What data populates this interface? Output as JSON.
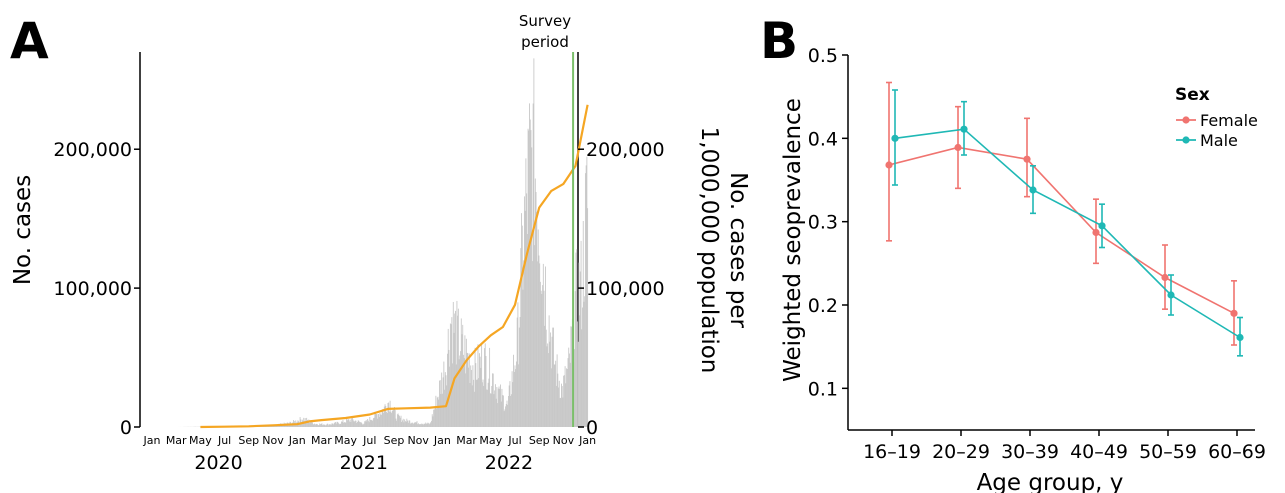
{
  "panel_a": {
    "letter": "A",
    "survey_label_line1": "Survey",
    "survey_label_line2": "period",
    "left_axis_title": "No. cases",
    "right_axis_title_line1": "No. cases per",
    "right_axis_title_line2": "1,000,000 population",
    "left_ticks": [
      {
        "value": 0,
        "label": "0"
      },
      {
        "value": 100000,
        "label": "100,000"
      },
      {
        "value": 200000,
        "label": "200,000"
      }
    ],
    "right_ticks": [
      {
        "value": 0,
        "label": "0"
      },
      {
        "value": 100000,
        "label": "100,000"
      },
      {
        "value": 200000,
        "label": "200,000"
      }
    ],
    "month_labels": [
      "Jan",
      "Mar",
      "May",
      "Jul",
      "Sep",
      "Nov",
      "Jan",
      "Mar",
      "May",
      "Jul",
      "Sep",
      "Nov",
      "Jan",
      "Mar",
      "May",
      "Jul",
      "Sep",
      "Nov",
      "Jan"
    ],
    "year_labels": [
      "2020",
      "2021",
      "2022"
    ],
    "colors": {
      "bars": "#c8c8c8",
      "line": "#f5a623",
      "survey": "#7bbf6a"
    }
  },
  "panel_b": {
    "letter": "B",
    "y_axis_title": "Weighted seoprevalence",
    "x_axis_title": "Age group, y",
    "y_ticks": [
      "0.1",
      "0.2",
      "0.3",
      "0.4",
      "0.5"
    ],
    "legend_title": "Sex",
    "legend_entries": [
      "Female",
      "Male"
    ]
  },
  "chart_data": [
    {
      "type": "bar",
      "x_unit": "month",
      "x_range": [
        "2020-01",
        "2023-01"
      ],
      "ylim": [
        0,
        270000
      ],
      "xlabel": "",
      "ylabel": "No. cases",
      "ylabel_right": "No. cases per 1,000,000 population",
      "annotation": "Survey period",
      "survey_period_month_index": 34.8,
      "bars_daily_cases": [
        {
          "month": 0,
          "value": 0
        },
        {
          "month": 2,
          "value": 0
        },
        {
          "month": 4,
          "value": 200
        },
        {
          "month": 6,
          "value": 500
        },
        {
          "month": 8,
          "value": 1200
        },
        {
          "month": 10,
          "value": 1500
        },
        {
          "month": 11.5,
          "value": 4000
        },
        {
          "month": 12.5,
          "value": 8000
        },
        {
          "month": 13.5,
          "value": 3000
        },
        {
          "month": 14.5,
          "value": 2500
        },
        {
          "month": 15.5,
          "value": 4000
        },
        {
          "month": 16.5,
          "value": 7000
        },
        {
          "month": 17.5,
          "value": 3500
        },
        {
          "month": 19,
          "value": 15000
        },
        {
          "month": 19.6,
          "value": 25000
        },
        {
          "month": 20.2,
          "value": 10000
        },
        {
          "month": 21,
          "value": 6000
        },
        {
          "month": 22,
          "value": 4000
        },
        {
          "month": 23,
          "value": 3000
        },
        {
          "month": 24.3,
          "value": 60000
        },
        {
          "month": 24.7,
          "value": 104000
        },
        {
          "month": 25.3,
          "value": 85000
        },
        {
          "month": 26,
          "value": 68000
        },
        {
          "month": 26.7,
          "value": 55000
        },
        {
          "month": 27.4,
          "value": 65000
        },
        {
          "month": 28.1,
          "value": 50000
        },
        {
          "month": 28.8,
          "value": 30000
        },
        {
          "month": 29.4,
          "value": 20000
        },
        {
          "month": 30.2,
          "value": 80000
        },
        {
          "month": 30.7,
          "value": 180000
        },
        {
          "month": 31.2,
          "value": 245000
        },
        {
          "month": 31.6,
          "value": 255000
        },
        {
          "month": 32.1,
          "value": 190000
        },
        {
          "month": 32.7,
          "value": 110000
        },
        {
          "month": 33.3,
          "value": 60000
        },
        {
          "month": 33.9,
          "value": 35000
        },
        {
          "month": 34.5,
          "value": 60000
        },
        {
          "month": 35.0,
          "value": 120000
        },
        {
          "month": 35.5,
          "value": 135000
        },
        {
          "month": 35.9,
          "value": 205000
        },
        {
          "month": 36.0,
          "value": 215000
        }
      ],
      "line_per_million": {
        "name": "",
        "points": [
          {
            "month": 4.0,
            "value": 0
          },
          {
            "month": 6,
            "value": 200
          },
          {
            "month": 8,
            "value": 500
          },
          {
            "month": 10,
            "value": 1200
          },
          {
            "month": 12,
            "value": 2000
          },
          {
            "month": 13,
            "value": 4000
          },
          {
            "month": 14,
            "value": 5000
          },
          {
            "month": 16,
            "value": 6500
          },
          {
            "month": 18,
            "value": 9000
          },
          {
            "month": 19.5,
            "value": 13000
          },
          {
            "month": 21,
            "value": 13500
          },
          {
            "month": 23,
            "value": 14000
          },
          {
            "month": 24.3,
            "value": 15000
          },
          {
            "month": 25.0,
            "value": 35000
          },
          {
            "month": 26,
            "value": 48000
          },
          {
            "month": 27,
            "value": 58000
          },
          {
            "month": 28,
            "value": 66000
          },
          {
            "month": 29,
            "value": 72000
          },
          {
            "month": 30,
            "value": 88000
          },
          {
            "month": 31,
            "value": 125000
          },
          {
            "month": 32,
            "value": 158000
          },
          {
            "month": 33,
            "value": 170000
          },
          {
            "month": 34,
            "value": 175000
          },
          {
            "month": 35,
            "value": 188000
          },
          {
            "month": 36,
            "value": 232000
          }
        ]
      }
    },
    {
      "type": "line",
      "categories": [
        "16–19",
        "20–29",
        "30–39",
        "40–49",
        "50–59",
        "60–69"
      ],
      "xlabel": "Age group, y",
      "ylabel": "Weighted seoprevalence",
      "ylim": [
        0.05,
        0.5
      ],
      "legend_title": "Sex",
      "legend_position": "top-right",
      "series": [
        {
          "name": "Female",
          "color": "#f07470",
          "values": [
            0.368,
            0.389,
            0.375,
            0.287,
            0.233,
            0.19
          ],
          "ci_low": [
            0.277,
            0.34,
            0.33,
            0.25,
            0.195,
            0.152
          ],
          "ci_high": [
            0.467,
            0.438,
            0.424,
            0.327,
            0.272,
            0.229
          ]
        },
        {
          "name": "Male",
          "color": "#1fb8b5",
          "values": [
            0.4,
            0.411,
            0.338,
            0.295,
            0.212,
            0.161
          ],
          "ci_low": [
            0.344,
            0.38,
            0.31,
            0.269,
            0.188,
            0.139
          ],
          "ci_high": [
            0.458,
            0.444,
            0.367,
            0.321,
            0.236,
            0.185
          ]
        }
      ]
    }
  ]
}
